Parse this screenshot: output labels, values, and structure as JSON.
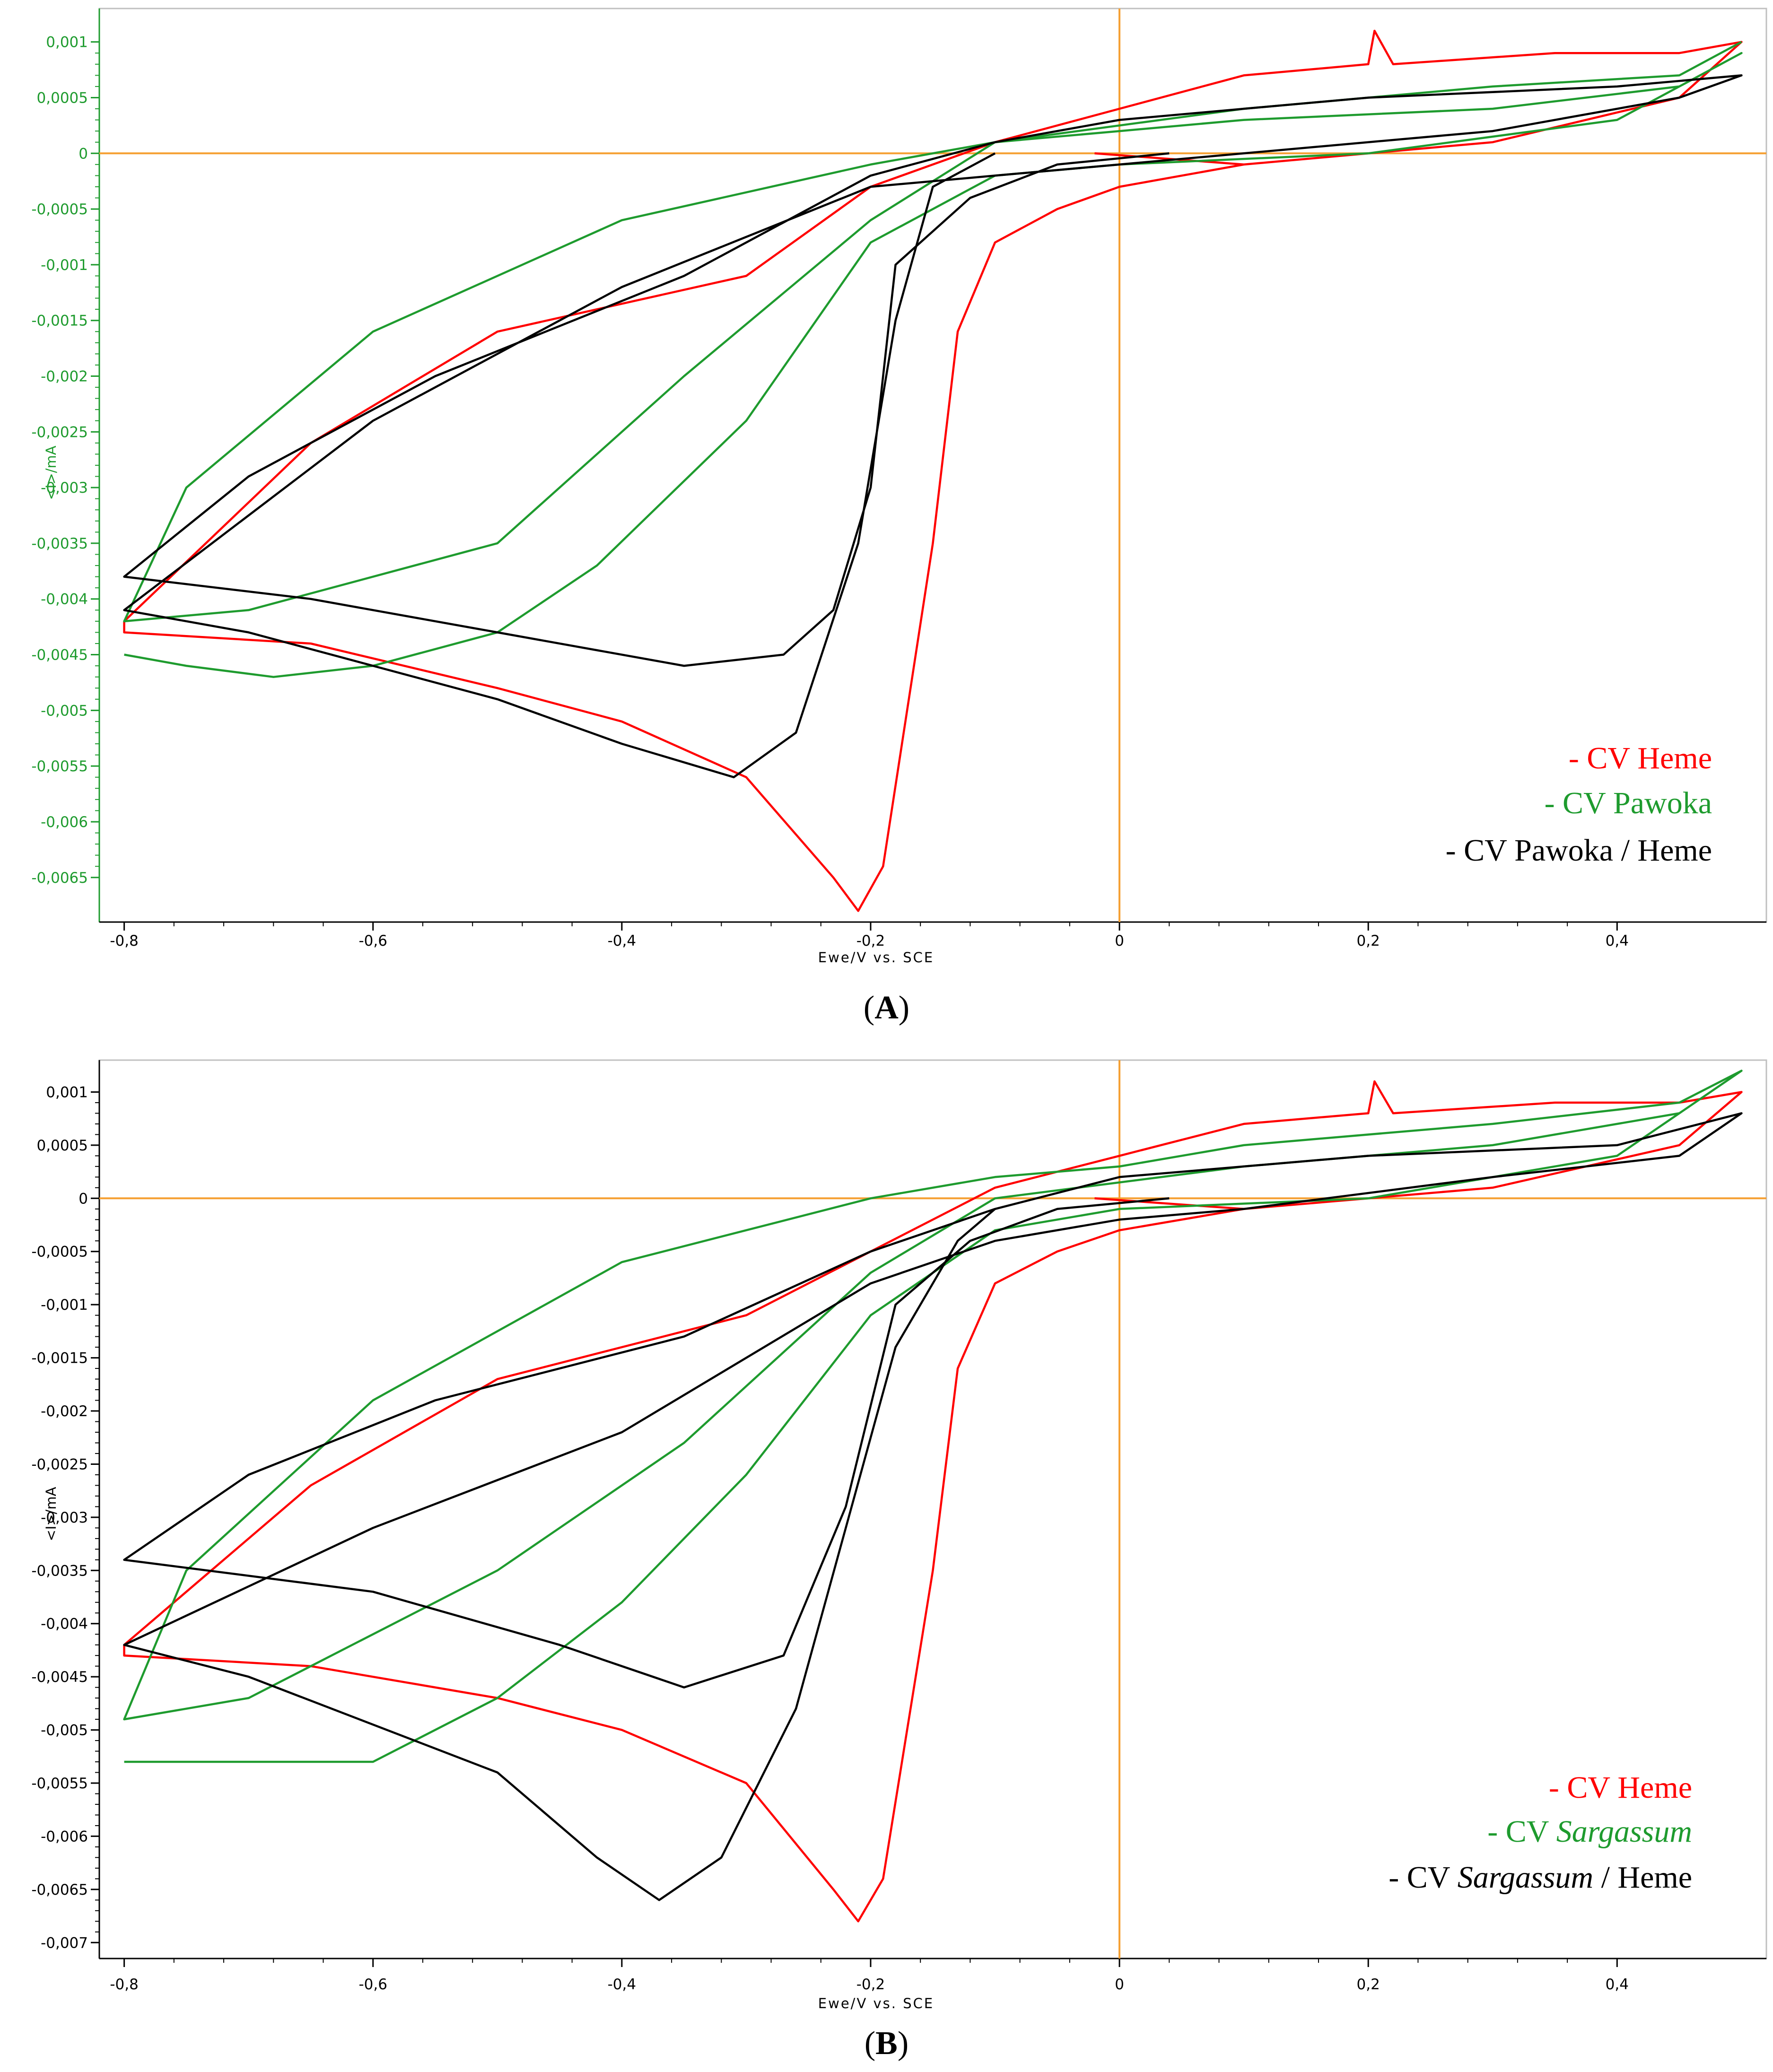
{
  "figure": {
    "captions": {
      "A": "A",
      "B": "B"
    }
  },
  "colors": {
    "heme": "#ff0000",
    "green": "#1e9b2e",
    "black": "#000000",
    "axis_origin": "#f5a033",
    "y_tick_green": "#1e9b2e"
  },
  "chart_data": [
    {
      "panel": "A",
      "type": "line",
      "xlabel": "Ewe/V vs. SCE",
      "ylabel": "<I>/mA",
      "xlim": [
        -0.82,
        0.52
      ],
      "ylim": [
        -0.0069,
        0.0013
      ],
      "x_ticks": [
        -0.8,
        -0.6,
        -0.4,
        -0.2,
        0,
        0.2,
        0.4
      ],
      "x_tick_labels": [
        "-0,8",
        "-0,6",
        "-0,4",
        "-0,2",
        "0",
        "0,2",
        "0,4"
      ],
      "y_ticks": [
        0.001,
        0.0005,
        0,
        -0.0005,
        -0.001,
        -0.0015,
        -0.002,
        -0.0025,
        -0.003,
        -0.0035,
        -0.004,
        -0.0045,
        -0.005,
        -0.0055,
        -0.006,
        -0.0065
      ],
      "y_tick_labels": [
        "0,001",
        "0,0005",
        "0",
        "-0,0005",
        "-0,001",
        "-0,0015",
        "-0,002",
        "-0,0025",
        "-0,003",
        "-0,0035",
        "-0,004",
        "-0,0045",
        "-0,005",
        "-0,0055",
        "-0,006",
        "-0,0065"
      ],
      "y_tick_color": "green",
      "legend": [
        {
          "prefix": "- ",
          "parts": [
            {
              "text": "CV Heme",
              "italic": false
            }
          ],
          "color": "heme"
        },
        {
          "prefix": "- ",
          "parts": [
            {
              "text": "CV Pawoka",
              "italic": false
            }
          ],
          "color": "green"
        },
        {
          "prefix": "- ",
          "parts": [
            {
              "text": "CV Pawoka / Heme",
              "italic": false
            }
          ],
          "color": "black"
        }
      ],
      "series": [
        {
          "name": "CV Heme",
          "color": "heme",
          "points": [
            [
              -0.02,
              0.0
            ],
            [
              0.1,
              -0.0001
            ],
            [
              0.3,
              0.0001
            ],
            [
              0.45,
              0.0005
            ],
            [
              0.5,
              0.001
            ],
            [
              0.45,
              0.0009
            ],
            [
              0.35,
              0.0009
            ],
            [
              0.22,
              0.0008
            ],
            [
              0.205,
              0.0011
            ],
            [
              0.2,
              0.0008
            ],
            [
              0.1,
              0.0007
            ],
            [
              0.0,
              0.0004
            ],
            [
              -0.1,
              0.0001
            ],
            [
              -0.2,
              -0.0003
            ],
            [
              -0.3,
              -0.0011
            ],
            [
              -0.5,
              -0.0016
            ],
            [
              -0.65,
              -0.0026
            ],
            [
              -0.8,
              -0.0042
            ],
            [
              -0.8,
              -0.0043
            ],
            [
              -0.65,
              -0.0044
            ],
            [
              -0.5,
              -0.0048
            ],
            [
              -0.4,
              -0.0051
            ],
            [
              -0.3,
              -0.0056
            ],
            [
              -0.23,
              -0.0065
            ],
            [
              -0.21,
              -0.0068
            ],
            [
              -0.19,
              -0.0064
            ],
            [
              -0.15,
              -0.0035
            ],
            [
              -0.13,
              -0.0016
            ],
            [
              -0.1,
              -0.0008
            ],
            [
              -0.05,
              -0.0005
            ],
            [
              0.0,
              -0.0003
            ],
            [
              0.1,
              -0.0001
            ]
          ]
        },
        {
          "name": "CV Pawoka",
          "color": "green",
          "points": [
            [
              -0.8,
              -0.0045
            ],
            [
              -0.75,
              -0.0046
            ],
            [
              -0.68,
              -0.0047
            ],
            [
              -0.6,
              -0.0046
            ],
            [
              -0.5,
              -0.0043
            ],
            [
              -0.42,
              -0.0037
            ],
            [
              -0.3,
              -0.0024
            ],
            [
              -0.2,
              -0.0008
            ],
            [
              -0.1,
              -0.0002
            ],
            [
              0.0,
              -0.0001
            ],
            [
              0.2,
              0.0
            ],
            [
              0.4,
              0.0003
            ],
            [
              0.5,
              0.0009
            ],
            [
              0.45,
              0.0006
            ],
            [
              0.3,
              0.0004
            ],
            [
              0.1,
              0.0003
            ],
            [
              0.0,
              0.0002
            ],
            [
              -0.1,
              0.0001
            ],
            [
              -0.2,
              -0.0001
            ],
            [
              -0.4,
              -0.0006
            ],
            [
              -0.6,
              -0.0016
            ],
            [
              -0.75,
              -0.003
            ],
            [
              -0.8,
              -0.0042
            ],
            [
              -0.7,
              -0.0041
            ],
            [
              -0.5,
              -0.0035
            ],
            [
              -0.35,
              -0.002
            ],
            [
              -0.2,
              -0.0006
            ],
            [
              -0.1,
              0.0001
            ],
            [
              0.1,
              0.0004
            ],
            [
              0.3,
              0.0006
            ],
            [
              0.45,
              0.0007
            ],
            [
              0.5,
              0.001
            ]
          ]
        },
        {
          "name": "CV Pawoka / Heme",
          "color": "black",
          "points": [
            [
              0.04,
              0.0
            ],
            [
              -0.05,
              -0.0001
            ],
            [
              -0.12,
              -0.0004
            ],
            [
              -0.18,
              -0.001
            ],
            [
              -0.2,
              -0.003
            ],
            [
              -0.23,
              -0.0041
            ],
            [
              -0.27,
              -0.0045
            ],
            [
              -0.35,
              -0.0046
            ],
            [
              -0.5,
              -0.0043
            ],
            [
              -0.65,
              -0.004
            ],
            [
              -0.8,
              -0.0038
            ],
            [
              -0.7,
              -0.0029
            ],
            [
              -0.55,
              -0.002
            ],
            [
              -0.35,
              -0.0011
            ],
            [
              -0.2,
              -0.0002
            ],
            [
              -0.1,
              0.0001
            ],
            [
              0.0,
              0.0003
            ],
            [
              0.2,
              0.0005
            ],
            [
              0.4,
              0.0006
            ],
            [
              0.5,
              0.0007
            ],
            [
              0.45,
              0.0005
            ],
            [
              0.3,
              0.0002
            ],
            [
              0.1,
              0.0
            ],
            [
              0.0,
              -0.0001
            ],
            [
              -0.1,
              -0.0002
            ],
            [
              -0.2,
              -0.0003
            ],
            [
              -0.4,
              -0.0012
            ],
            [
              -0.6,
              -0.0024
            ],
            [
              -0.8,
              -0.0041
            ],
            [
              -0.7,
              -0.0043
            ],
            [
              -0.5,
              -0.0049
            ],
            [
              -0.4,
              -0.0053
            ],
            [
              -0.31,
              -0.0056
            ],
            [
              -0.26,
              -0.0052
            ],
            [
              -0.21,
              -0.0035
            ],
            [
              -0.18,
              -0.0015
            ],
            [
              -0.15,
              -0.0003
            ],
            [
              -0.1,
              0.0
            ]
          ]
        }
      ]
    },
    {
      "panel": "B",
      "type": "line",
      "xlabel": "Ewe/V vs. SCE",
      "ylabel": "<I>/mA",
      "xlim": [
        -0.82,
        0.52
      ],
      "ylim": [
        -0.00715,
        0.0013
      ],
      "x_ticks": [
        -0.8,
        -0.6,
        -0.4,
        -0.2,
        0,
        0.2,
        0.4
      ],
      "x_tick_labels": [
        "-0,8",
        "-0,6",
        "-0,4",
        "-0,2",
        "0",
        "0,2",
        "0,4"
      ],
      "y_ticks": [
        0.001,
        0.0005,
        0,
        -0.0005,
        -0.001,
        -0.0015,
        -0.002,
        -0.0025,
        -0.003,
        -0.0035,
        -0.004,
        -0.0045,
        -0.005,
        -0.0055,
        -0.006,
        -0.0065,
        -0.007
      ],
      "y_tick_labels": [
        "0,001",
        "0,0005",
        "0",
        "-0,0005",
        "-0,001",
        "-0,0015",
        "-0,002",
        "-0,0025",
        "-0,003",
        "-0,0035",
        "-0,004",
        "-0,0045",
        "-0,005",
        "-0,0055",
        "-0,006",
        "-0,0065",
        "-0,007"
      ],
      "y_tick_color": "black",
      "legend": [
        {
          "prefix": "- ",
          "parts": [
            {
              "text": "CV Heme",
              "italic": false
            }
          ],
          "color": "heme"
        },
        {
          "prefix": "- CV ",
          "parts": [
            {
              "text": "Sargassum",
              "italic": true
            }
          ],
          "color": "green"
        },
        {
          "prefix": "- CV ",
          "parts": [
            {
              "text": "Sargassum",
              "italic": true
            },
            {
              "text": " / Heme",
              "italic": false
            }
          ],
          "color": "black"
        }
      ],
      "series": [
        {
          "name": "CV Heme",
          "color": "heme",
          "points": [
            [
              -0.02,
              0.0
            ],
            [
              0.1,
              -0.0001
            ],
            [
              0.3,
              0.0001
            ],
            [
              0.45,
              0.0005
            ],
            [
              0.5,
              0.001
            ],
            [
              0.45,
              0.0009
            ],
            [
              0.35,
              0.0009
            ],
            [
              0.22,
              0.0008
            ],
            [
              0.205,
              0.0011
            ],
            [
              0.2,
              0.0008
            ],
            [
              0.1,
              0.0007
            ],
            [
              0.0,
              0.0004
            ],
            [
              -0.1,
              0.0001
            ],
            [
              -0.2,
              -0.0005
            ],
            [
              -0.3,
              -0.0011
            ],
            [
              -0.5,
              -0.0017
            ],
            [
              -0.65,
              -0.0027
            ],
            [
              -0.8,
              -0.0042
            ],
            [
              -0.8,
              -0.0043
            ],
            [
              -0.65,
              -0.0044
            ],
            [
              -0.5,
              -0.0047
            ],
            [
              -0.4,
              -0.005
            ],
            [
              -0.3,
              -0.0055
            ],
            [
              -0.23,
              -0.0065
            ],
            [
              -0.21,
              -0.0068
            ],
            [
              -0.19,
              -0.0064
            ],
            [
              -0.15,
              -0.0035
            ],
            [
              -0.13,
              -0.0016
            ],
            [
              -0.1,
              -0.0008
            ],
            [
              -0.05,
              -0.0005
            ],
            [
              0.0,
              -0.0003
            ],
            [
              0.1,
              -0.0001
            ]
          ]
        },
        {
          "name": "CV Sargassum",
          "color": "green",
          "points": [
            [
              -0.8,
              -0.0053
            ],
            [
              -0.7,
              -0.0053
            ],
            [
              -0.6,
              -0.0053
            ],
            [
              -0.5,
              -0.0047
            ],
            [
              -0.4,
              -0.0038
            ],
            [
              -0.3,
              -0.0026
            ],
            [
              -0.2,
              -0.0011
            ],
            [
              -0.1,
              -0.0003
            ],
            [
              0.0,
              -0.0001
            ],
            [
              0.2,
              0.0
            ],
            [
              0.4,
              0.0004
            ],
            [
              0.5,
              0.0012
            ],
            [
              0.45,
              0.0009
            ],
            [
              0.3,
              0.0007
            ],
            [
              0.1,
              0.0005
            ],
            [
              0.0,
              0.0003
            ],
            [
              -0.1,
              0.0002
            ],
            [
              -0.2,
              0.0
            ],
            [
              -0.4,
              -0.0006
            ],
            [
              -0.6,
              -0.0019
            ],
            [
              -0.75,
              -0.0035
            ],
            [
              -0.8,
              -0.0049
            ],
            [
              -0.7,
              -0.0047
            ],
            [
              -0.5,
              -0.0035
            ],
            [
              -0.35,
              -0.0023
            ],
            [
              -0.2,
              -0.0007
            ],
            [
              -0.1,
              0.0
            ],
            [
              0.1,
              0.0003
            ],
            [
              0.3,
              0.0005
            ],
            [
              0.45,
              0.0008
            ],
            [
              0.5,
              0.0012
            ]
          ]
        },
        {
          "name": "CV Sargassum / Heme",
          "color": "black",
          "points": [
            [
              0.04,
              0.0
            ],
            [
              -0.05,
              -0.0001
            ],
            [
              -0.12,
              -0.0004
            ],
            [
              -0.18,
              -0.001
            ],
            [
              -0.22,
              -0.0029
            ],
            [
              -0.27,
              -0.0043
            ],
            [
              -0.35,
              -0.0046
            ],
            [
              -0.45,
              -0.0042
            ],
            [
              -0.6,
              -0.0037
            ],
            [
              -0.8,
              -0.0034
            ],
            [
              -0.7,
              -0.0026
            ],
            [
              -0.55,
              -0.0019
            ],
            [
              -0.35,
              -0.0013
            ],
            [
              -0.2,
              -0.0005
            ],
            [
              -0.1,
              -0.0001
            ],
            [
              0.0,
              0.0002
            ],
            [
              0.2,
              0.0004
            ],
            [
              0.4,
              0.0005
            ],
            [
              0.5,
              0.0008
            ],
            [
              0.45,
              0.0004
            ],
            [
              0.3,
              0.0002
            ],
            [
              0.1,
              -0.0001
            ],
            [
              0.0,
              -0.0002
            ],
            [
              -0.1,
              -0.0004
            ],
            [
              -0.2,
              -0.0008
            ],
            [
              -0.4,
              -0.0022
            ],
            [
              -0.6,
              -0.0031
            ],
            [
              -0.8,
              -0.0042
            ],
            [
              -0.7,
              -0.0045
            ],
            [
              -0.5,
              -0.0054
            ],
            [
              -0.42,
              -0.0062
            ],
            [
              -0.37,
              -0.0066
            ],
            [
              -0.32,
              -0.0062
            ],
            [
              -0.26,
              -0.0048
            ],
            [
              -0.22,
              -0.0031
            ],
            [
              -0.18,
              -0.0014
            ],
            [
              -0.13,
              -0.0004
            ],
            [
              -0.1,
              -0.0001
            ]
          ]
        }
      ]
    }
  ]
}
